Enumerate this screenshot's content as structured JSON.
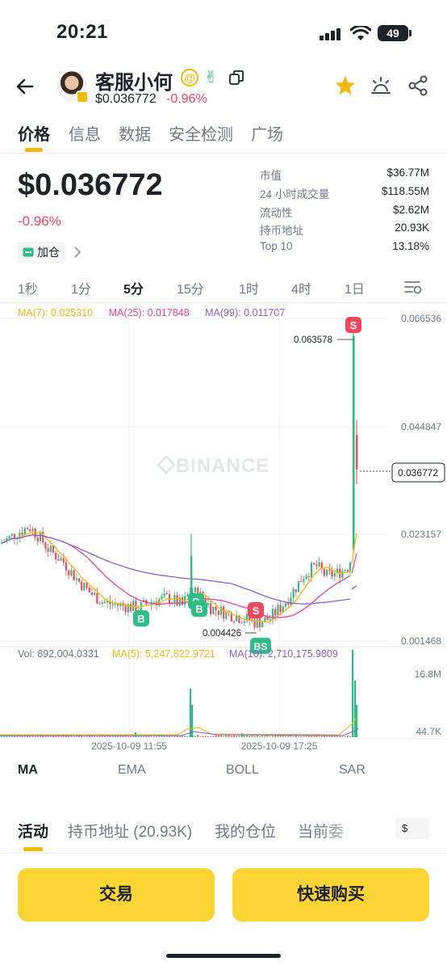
{
  "status_bar": {
    "time": "20:21",
    "battery": "49"
  },
  "header": {
    "token_name": "客服小何",
    "price": "$0.036772",
    "change": "-0.96%"
  },
  "main_tabs": [
    "价格",
    "信息",
    "数据",
    "安全检测",
    "广场"
  ],
  "summary": {
    "price": "$0.036772",
    "change": "-0.96%",
    "position_button": "加仓"
  },
  "stats": [
    {
      "label": "市值",
      "value": "$36.77M"
    },
    {
      "label": "24 小时成交量",
      "value": "$118.55M"
    },
    {
      "label": "流动性",
      "value": "$2.62M"
    },
    {
      "label": "持币地址",
      "value": "20.93K"
    },
    {
      "label": "Top 10",
      "value": "13.18%"
    }
  ],
  "intervals": [
    "1秒",
    "1分",
    "5分",
    "15分",
    "1时",
    "4时",
    "1日"
  ],
  "active_interval": "5分",
  "ma_legend": {
    "ma7": "MA(7): 0.025310",
    "ma25": "MA(25): 0.017848",
    "ma99": "MA(99): 0.011707"
  },
  "colors": {
    "up": "#2ebd85",
    "down": "#f6465d",
    "ma7": "#f0b90b",
    "ma25": "#e84393",
    "ma99": "#8e5fc8",
    "accent": "#fcd535"
  },
  "chart_data": {
    "type": "candlestick",
    "watermark": "BINANCE",
    "price_axis_labels": [
      "0.066536",
      "0.044847",
      "0.023157",
      "0.001468"
    ],
    "ylim": [
      0.001468,
      0.066536
    ],
    "current_price_label": "0.036772",
    "high_label": "0.063578",
    "low_label": "0.004426",
    "time_labels": [
      "2025-10-09 11:55",
      "2025-10-09 17:25"
    ],
    "markers": [
      {
        "type": "B",
        "label": "B"
      },
      {
        "type": "B",
        "label": "B"
      },
      {
        "type": "B",
        "label": "B"
      },
      {
        "type": "S",
        "label": "S"
      },
      {
        "type": "S",
        "label": "S"
      },
      {
        "type": "BS",
        "label": "BS"
      }
    ],
    "volume_legend": {
      "vol": "Vol: 892,004.0331",
      "ma5": "MA(5): 5,247,822.9721",
      "ma10": "MA(10): 2,710,175.9809"
    },
    "volume_axis_labels": [
      "16.8M",
      "44.7K"
    ]
  },
  "indicator_tabs": [
    "MA",
    "EMA",
    "BOLL",
    "SAR"
  ],
  "bottom_tabs": [
    "活动",
    "持币地址 (20.93K)",
    "我的仓位",
    "当前委"
  ],
  "currency": "$",
  "buttons": {
    "trade": "交易",
    "quick_buy": "快速购买"
  }
}
